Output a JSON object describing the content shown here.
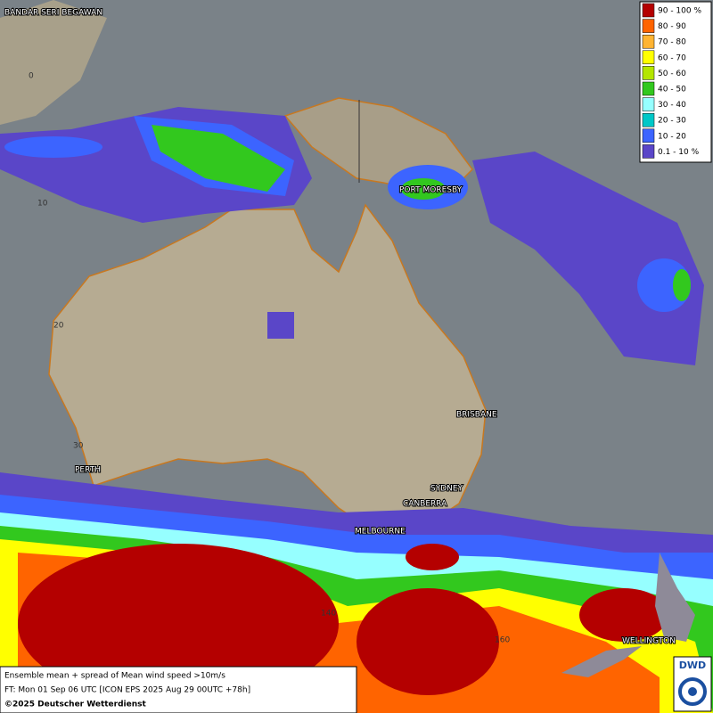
{
  "legend": [
    {
      "label": "90 - 100 %",
      "color": "#b40000"
    },
    {
      "label": "80 - 90",
      "color": "#ff6400"
    },
    {
      "label": "70 - 80",
      "color": "#ffb432"
    },
    {
      "label": "60 - 70",
      "color": "#ffff00"
    },
    {
      "label": "50 - 60",
      "color": "#b4e600"
    },
    {
      "label": "40 - 50",
      "color": "#32c81e"
    },
    {
      "label": "30 - 40",
      "color": "#96ffff"
    },
    {
      "label": "20 - 30",
      "color": "#00c8c8"
    },
    {
      "label": "10 - 20",
      "color": "#3c64ff"
    },
    {
      "label": "0.1 - 10 %",
      "color": "#5a46c8"
    }
  ],
  "places": [
    "BANDAR SERI BEGAWAN",
    "PORT MORESBY",
    "BRISBANE",
    "SYDNEY",
    "CANBERRA",
    "MELBOURNE",
    "PERTH",
    "WELLINGTON"
  ],
  "grid_labels": [
    "0",
    "10",
    "20",
    "30",
    "140",
    "160"
  ],
  "footer": {
    "line1": "Ensemble mean + spread of Mean wind speed >10m/s",
    "line2": "FT: Mon 01 Sep 06 UTC [ICON EPS 2025 Aug 29 00UTC +78h]",
    "line3": "©2025 Deutscher Wetterdienst"
  },
  "logo": "DWD"
}
